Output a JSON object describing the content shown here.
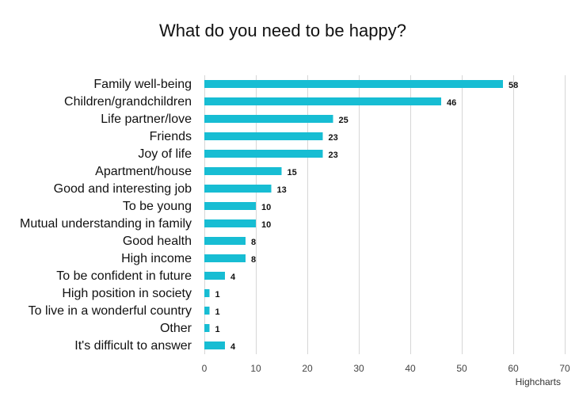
{
  "chart_data": {
    "type": "bar",
    "orientation": "horizontal",
    "title": "What do you need to be happy?",
    "xlabel": "",
    "ylabel": "",
    "categories": [
      "Family well-being",
      "Children/grandchildren",
      "Life partner/love",
      "Friends",
      "Joy of life",
      "Apartment/house",
      "Good and interesting job",
      "To be young",
      "Mutual understanding in family",
      "Good health",
      "High income",
      "To be confident in future",
      "High position in society",
      "To live in a wonderful country",
      "Other",
      "It's difficult to answer"
    ],
    "values": [
      58,
      46,
      25,
      23,
      23,
      15,
      13,
      10,
      10,
      8,
      8,
      4,
      1,
      1,
      1,
      4
    ],
    "xlim": [
      0,
      70
    ],
    "xticks": [
      0,
      10,
      20,
      30,
      40,
      50,
      60,
      70
    ],
    "grid": "vertical",
    "bar_color": "#17BDD3",
    "data_labels": true,
    "legend": "none"
  },
  "credits": "Highcharts"
}
